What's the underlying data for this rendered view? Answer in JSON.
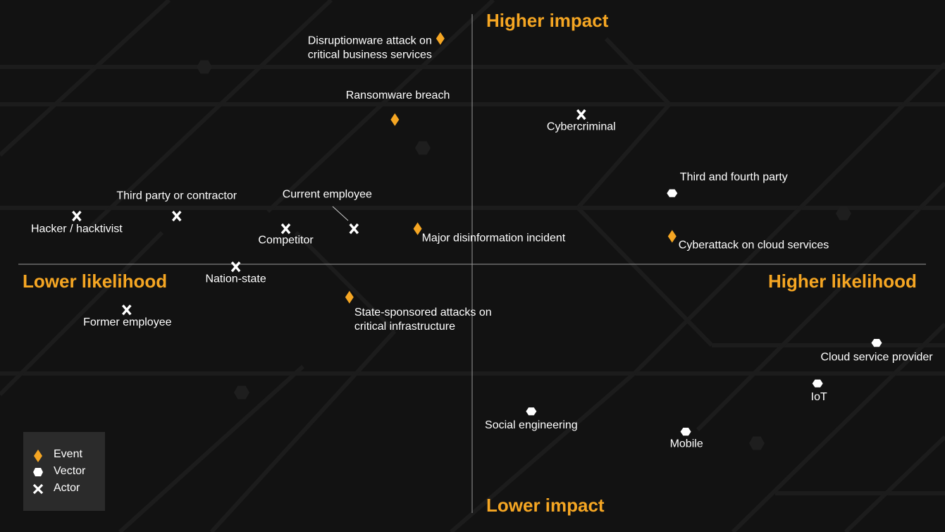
{
  "axes": {
    "top": "Higher impact",
    "bottom": "Lower impact",
    "left": "Lower likelihood",
    "right": "Higher likelihood"
  },
  "legend": {
    "event": "Event",
    "vector": "Vector",
    "actor": "Actor"
  },
  "colors": {
    "event": "#f5a623",
    "vector": "#ffffff",
    "actor": "#ffffff",
    "accent": "#f5a623",
    "background": "#121212"
  },
  "chart_data": {
    "type": "scatter",
    "xlabel": "likelihood",
    "ylabel": "impact",
    "xlim": [
      -1,
      1
    ],
    "ylim": [
      -1,
      1
    ],
    "grid": false,
    "legend_position": "bottom-left",
    "points": [
      {
        "label": "Disruptionware attack on\ncritical business services",
        "kind": "event",
        "x": -0.07,
        "y": 0.89
      },
      {
        "label": "Ransomware breach",
        "kind": "event",
        "x": -0.17,
        "y": 0.57
      },
      {
        "label": "Cybercriminal",
        "kind": "actor",
        "x": 0.24,
        "y": 0.59
      },
      {
        "label": "Third and fourth party",
        "kind": "vector",
        "x": 0.44,
        "y": 0.28
      },
      {
        "label": "Third party or contractor",
        "kind": "actor",
        "x": -0.65,
        "y": 0.19
      },
      {
        "label": "Hacker / hacktivist",
        "kind": "actor",
        "x": -0.87,
        "y": 0.19
      },
      {
        "label": "Current employee",
        "kind": "actor",
        "x": -0.26,
        "y": 0.14
      },
      {
        "label": "Competitor",
        "kind": "actor",
        "x": -0.41,
        "y": 0.14
      },
      {
        "label": "Major disinformation incident",
        "kind": "event",
        "x": -0.12,
        "y": 0.14
      },
      {
        "label": "Cyberattack on cloud services",
        "kind": "event",
        "x": 0.44,
        "y": 0.11
      },
      {
        "label": "Nation-state",
        "kind": "actor",
        "x": -0.52,
        "y": -0.01
      },
      {
        "label": "State-sponsored attacks on\ncritical infrastructure",
        "kind": "event",
        "x": -0.27,
        "y": -0.13
      },
      {
        "label": "Former employee",
        "kind": "actor",
        "x": -0.76,
        "y": -0.18
      },
      {
        "label": "Cloud service provider",
        "kind": "vector",
        "x": 0.89,
        "y": -0.31
      },
      {
        "label": "IoT",
        "kind": "vector",
        "x": 0.76,
        "y": -0.47
      },
      {
        "label": "Social engineering",
        "kind": "vector",
        "x": 0.13,
        "y": -0.58
      },
      {
        "label": "Mobile",
        "kind": "vector",
        "x": 0.47,
        "y": -0.66
      }
    ]
  }
}
